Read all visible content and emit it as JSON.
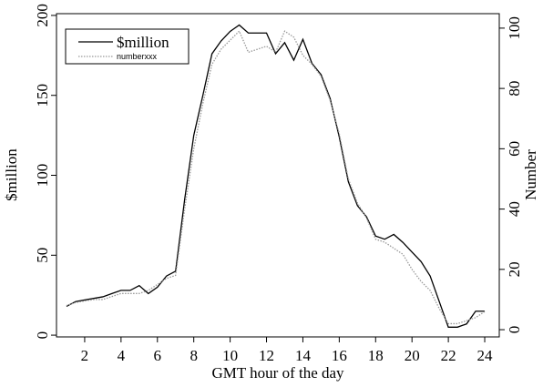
{
  "chart_data": {
    "type": "line",
    "x_label": "GMT hour of the day",
    "y_label": "$million",
    "y2_label": "Number",
    "x": [
      1,
      1.5,
      2,
      2.5,
      3,
      3.5,
      4,
      4.5,
      5,
      5.5,
      6,
      6.5,
      7,
      7.5,
      8,
      8.5,
      9,
      9.5,
      10,
      10.5,
      11,
      11.5,
      12,
      12.5,
      13,
      13.5,
      14,
      14.5,
      15,
      15.5,
      16,
      16.5,
      17,
      17.5,
      18,
      18.5,
      19,
      19.5,
      20,
      20.5,
      21,
      21.5,
      22,
      22.5,
      23,
      23.5,
      24
    ],
    "series": [
      {
        "name": "$million",
        "color": "#000000",
        "dash": "solid",
        "values": [
          18,
          21,
          22,
          23,
          24,
          26,
          28,
          28,
          31,
          26,
          30,
          37,
          40,
          85,
          125,
          150,
          176,
          184,
          190,
          194,
          189,
          189,
          189,
          176,
          183,
          172,
          185,
          170,
          163,
          148,
          124,
          96,
          81,
          74,
          62,
          60,
          63,
          58,
          52,
          46,
          37,
          21,
          5,
          5,
          7,
          15,
          15
        ]
      },
      {
        "name": "numberxxx",
        "color": "#999999",
        "dash": "dotted",
        "axis": "y2",
        "values": [
          8,
          9,
          9.5,
          10,
          10,
          11,
          12,
          12,
          12,
          13,
          15,
          17,
          18,
          40,
          60,
          75,
          88,
          93,
          96,
          99,
          92,
          93,
          94,
          92,
          99,
          97,
          91,
          88,
          84,
          76,
          65,
          50,
          42,
          37,
          30,
          29,
          27,
          25,
          20,
          16,
          13,
          7,
          2,
          2,
          3,
          4,
          6
        ]
      }
    ],
    "xlim": [
      0.45,
      24.8
    ],
    "xticks": [
      2,
      4,
      6,
      8,
      10,
      12,
      14,
      16,
      18,
      20,
      22,
      24
    ],
    "ylim": [
      -1.1,
      201.1
    ],
    "yticks": [
      0,
      50,
      100,
      150,
      200
    ],
    "y2lim": [
      -2.4,
      104.8
    ],
    "y2ticks": [
      0,
      20,
      40,
      60,
      80,
      100
    ],
    "legend": "upper left",
    "grid": false
  }
}
